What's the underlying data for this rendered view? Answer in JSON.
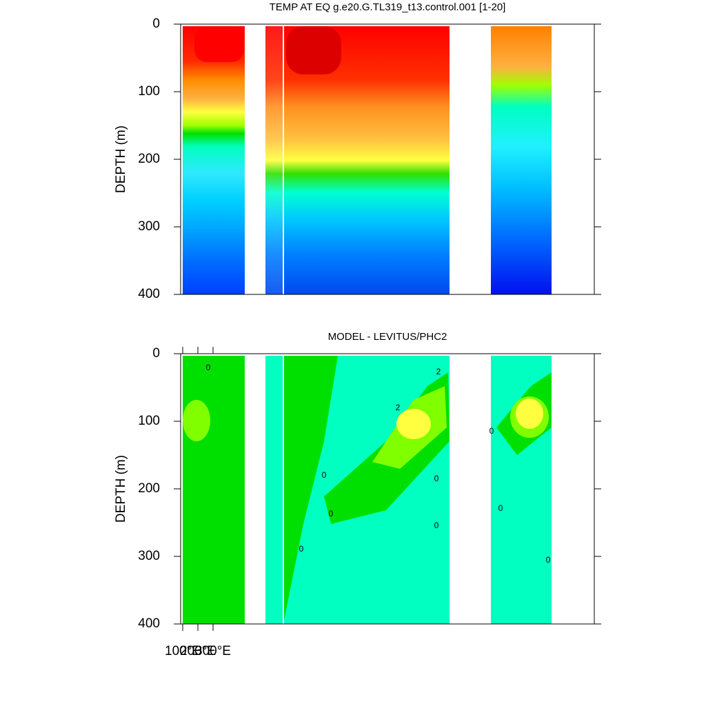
{
  "chart_data": [
    {
      "type": "contour",
      "title": "TEMP AT EQ g.e20.G.TL319_t13.control.001 [1-20]",
      "ylabel": "DEPTH (m)",
      "ylim": [
        0,
        400
      ],
      "y_reversed": true,
      "yticks": [
        0,
        100,
        200,
        300,
        400
      ]
    },
    {
      "type": "contour",
      "title": "MODEL - LEVITUS/PHC2",
      "ylabel": "DEPTH (m)",
      "ylim": [
        0,
        400
      ],
      "y_reversed": true,
      "yticks": [
        0,
        100,
        200,
        300,
        400
      ],
      "xticks": [
        {
          "value": 100,
          "label": "100°E"
        },
        {
          "value": 200,
          "label": "200°E"
        },
        {
          "value": 300,
          "label": "300°E"
        }
      ],
      "contour_labels": [
        0,
        2,
        0,
        2,
        0,
        0,
        0,
        0,
        0,
        0,
        0
      ]
    }
  ]
}
